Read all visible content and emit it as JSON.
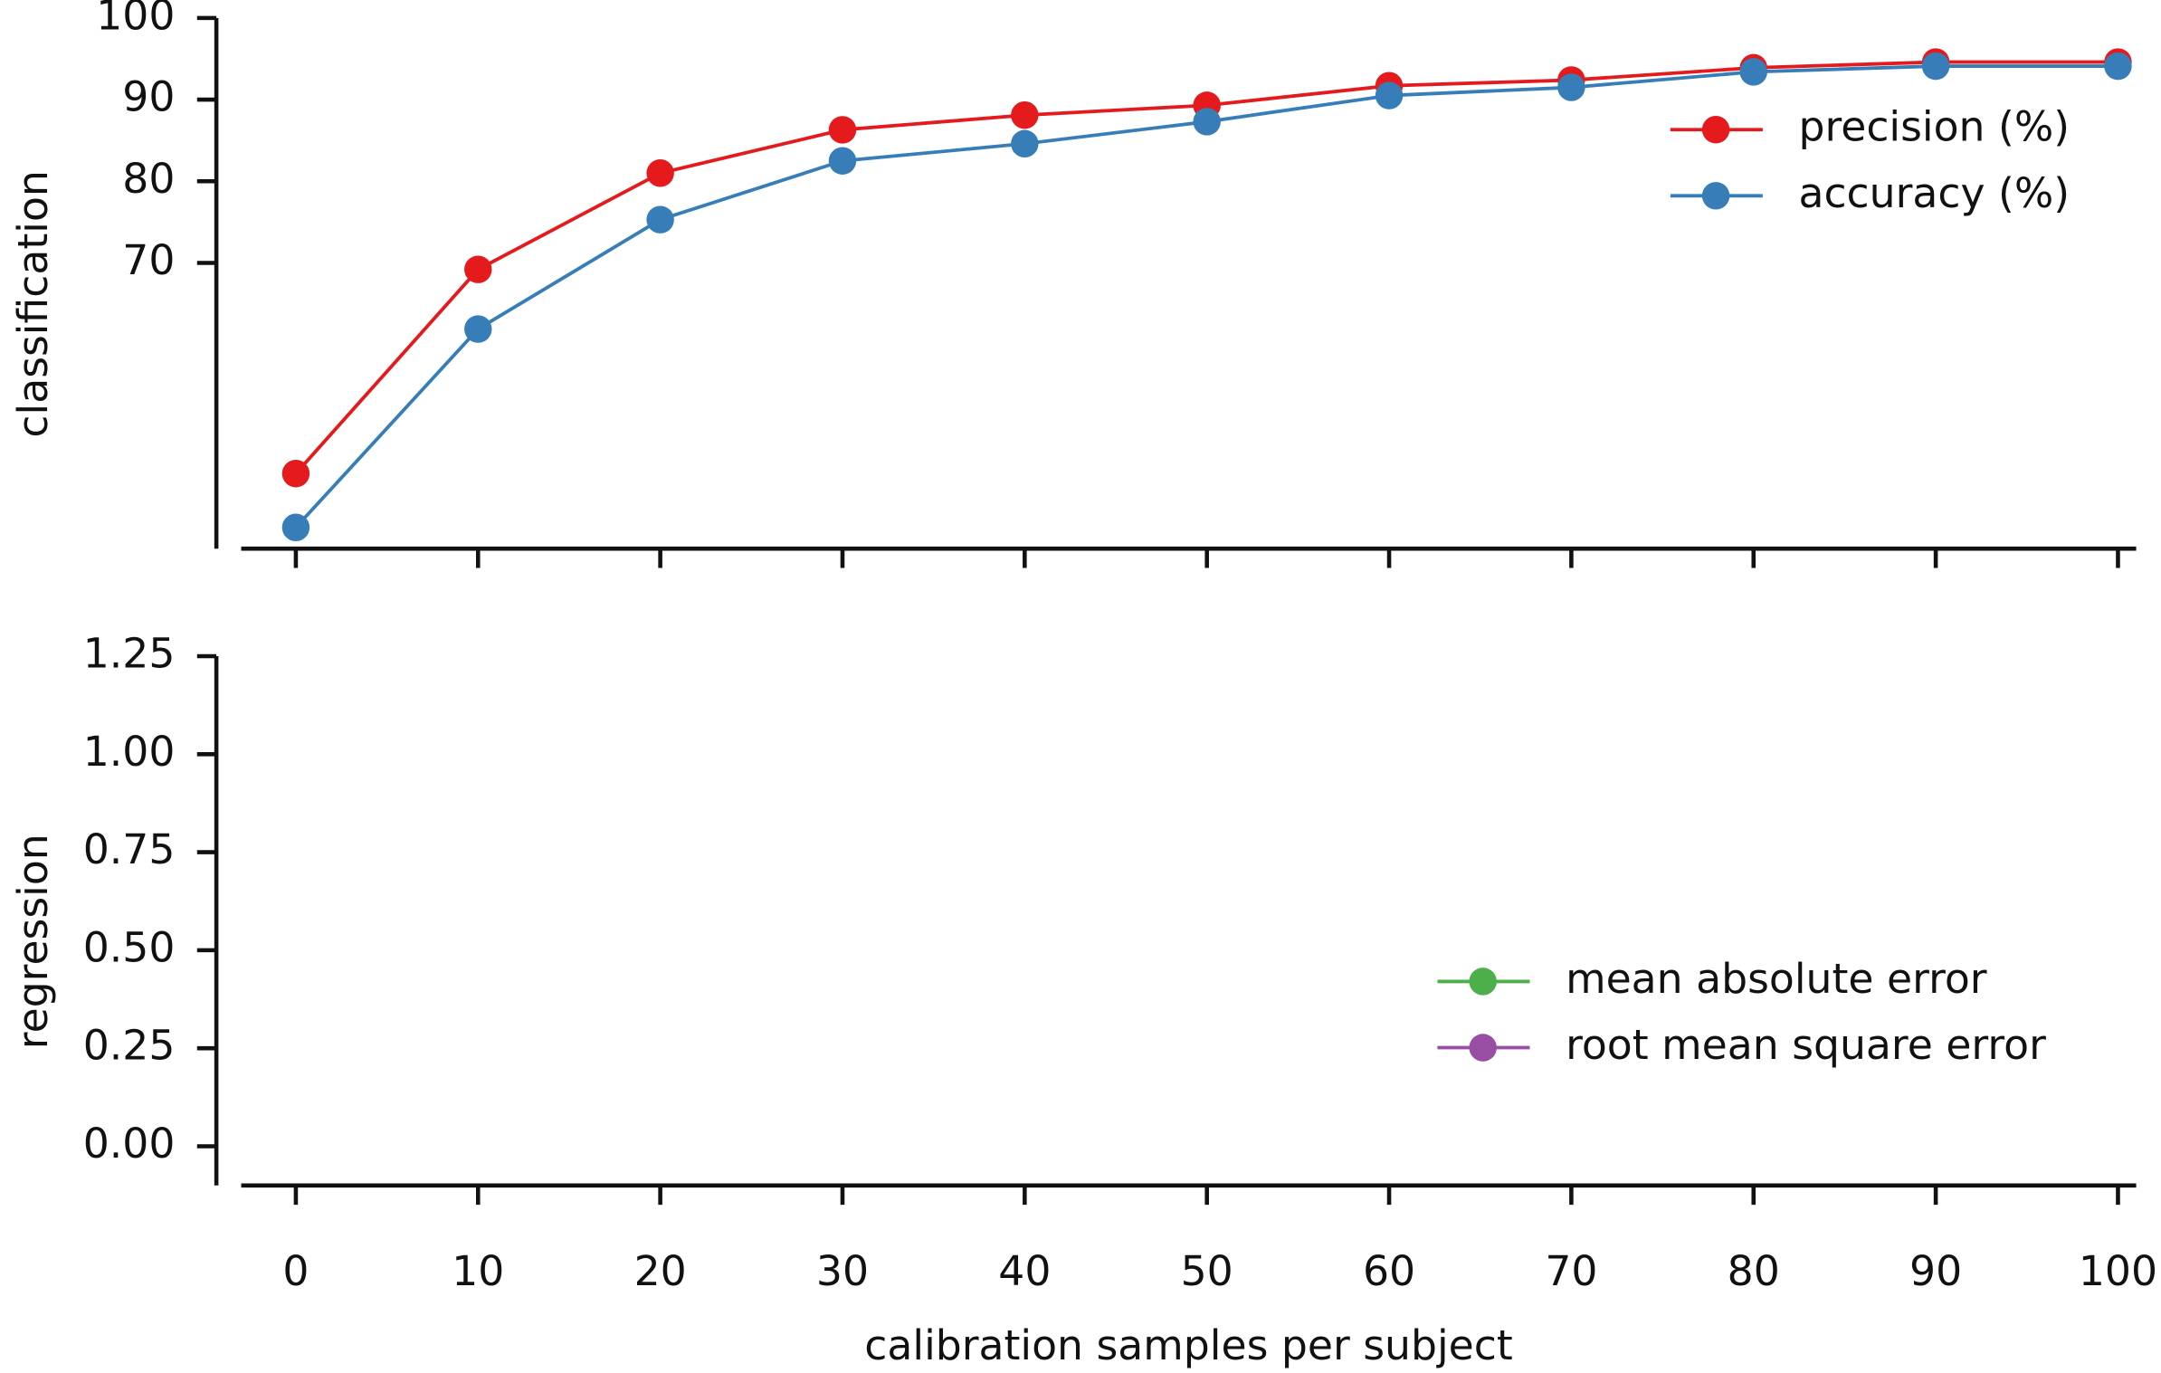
{
  "chart_data": [
    {
      "type": "line",
      "ylabel": "classification",
      "x": [
        0,
        10,
        20,
        30,
        40,
        50,
        60,
        70,
        80,
        90,
        100
      ],
      "xlim": [
        -3,
        101
      ],
      "ylim": [
        35,
        100
      ],
      "yticks": [
        70,
        80,
        90,
        100
      ],
      "legend": "upper right",
      "series": [
        {
          "name": "precision (%)",
          "color": "#e41a1c",
          "values": [
            44.2,
            69.2,
            81.0,
            86.3,
            88.1,
            89.3,
            91.7,
            92.4,
            93.9,
            94.6,
            94.6
          ]
        },
        {
          "name": "accuracy (%)",
          "color": "#377eb8",
          "values": [
            37.6,
            61.9,
            75.3,
            82.5,
            84.6,
            87.3,
            90.5,
            91.5,
            93.4,
            94.1,
            94.1
          ]
        }
      ]
    },
    {
      "type": "line",
      "ylabel": "regression",
      "xlabel": "calibration samples per subject",
      "x": [
        0,
        10,
        20,
        30,
        40,
        50,
        60,
        70,
        80,
        90,
        100
      ],
      "xlim": [
        -3,
        101
      ],
      "xticks": [
        0,
        10,
        20,
        30,
        40,
        50,
        60,
        70,
        80,
        90,
        100
      ],
      "ylim": [
        -0.1,
        1.25
      ],
      "yticks": [
        {
          "value": 0,
          "label": "0.00"
        },
        {
          "value": 0.25,
          "label": "0.25"
        },
        {
          "value": 0.5,
          "label": "0.50"
        },
        {
          "value": 0.75,
          "label": "0.75"
        },
        {
          "value": 1,
          "label": "1.00"
        },
        {
          "value": 1.25,
          "label": "1.25"
        }
      ],
      "legend": "lower right",
      "series": [
        {
          "name": "mean absolute error",
          "color": "#4daf4a",
          "values": [
            null,
            null,
            null,
            null,
            null,
            null,
            null,
            null,
            null,
            null,
            null
          ]
        },
        {
          "name": "root mean square error",
          "color": "#984ea3",
          "values": [
            null,
            null,
            null,
            null,
            null,
            null,
            null,
            null,
            null,
            null,
            null
          ]
        }
      ]
    }
  ]
}
